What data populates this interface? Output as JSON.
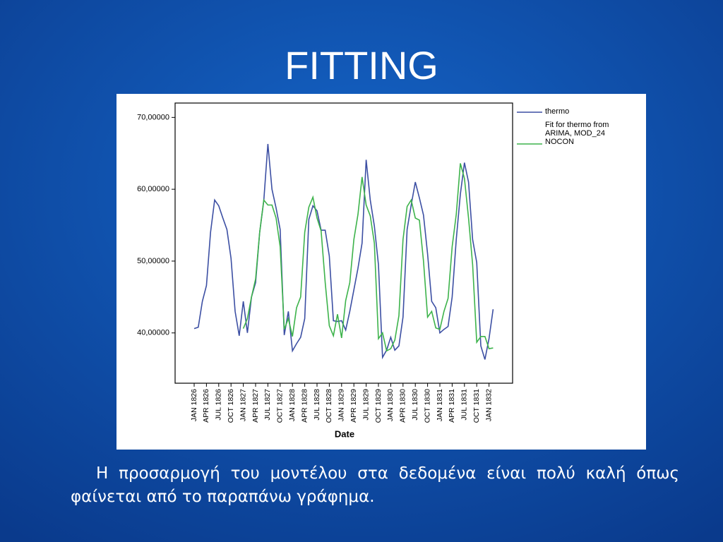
{
  "slide": {
    "title": "FITTING",
    "text": "Η προσαρμογή του μοντέλου στα δεδομένα είναι πολύ καλή όπως φαίνεται από το παραπάνω γράφημα."
  },
  "chart_data": {
    "type": "line",
    "x_label": "Date",
    "categories": [
      "JAN 1826",
      null,
      null,
      "APR 1826",
      null,
      null,
      "JUL 1826",
      null,
      null,
      "OCT 1826",
      null,
      null,
      "JAN 1827",
      null,
      null,
      "APR 1827",
      null,
      null,
      "JUL 1827",
      null,
      null,
      "OCT 1827",
      null,
      null,
      "JAN 1828",
      null,
      null,
      "APR 1828",
      null,
      null,
      "JUL 1828",
      null,
      null,
      "OCT 1828",
      null,
      null,
      "JAN 1829",
      null,
      null,
      "APR 1829",
      null,
      null,
      "JUL 1829",
      null,
      null,
      "OCT 1829",
      null,
      null,
      "JAN 1830",
      null,
      null,
      "APR 1830",
      null,
      null,
      "JUL 1830",
      null,
      null,
      "OCT 1830",
      null,
      null,
      "JAN 1831",
      null,
      null,
      "APR 1831",
      null,
      null,
      "JUL 1831",
      null,
      null,
      "OCT 1831",
      null,
      null,
      "JAN 1832",
      null
    ],
    "series": [
      {
        "name": "thermo",
        "color": "#3c4fa3",
        "values": [
          40.6,
          40.8,
          44.4,
          46.6,
          54,
          58.5,
          57.7,
          56,
          54.4,
          50.4,
          43,
          39.6,
          44.4,
          40,
          45,
          47,
          54,
          58.4,
          66.3,
          60,
          57.4,
          54.4,
          39.7,
          43,
          37.5,
          38.5,
          39.4,
          42,
          55.8,
          57.7,
          57,
          54.3,
          54.3,
          50.7,
          41.7,
          41.6,
          41.7,
          40.4,
          43,
          46,
          49,
          52.5,
          64.1,
          58.5,
          54.9,
          49.5,
          36.6,
          37.6,
          39.4,
          37.6,
          38.2,
          42.2,
          54.4,
          57.8,
          61,
          58.8,
          56.4,
          51,
          44.4,
          43.5,
          40,
          40.5,
          40.9,
          45,
          53,
          59.3,
          63.7,
          61,
          53,
          49.8,
          38.2,
          36.3,
          39.2,
          43.3
        ]
      },
      {
        "name": "Fit for thermo from ARIMA, MOD_24 NOCON",
        "color": "#3db34b",
        "values": [
          null,
          null,
          null,
          null,
          null,
          null,
          null,
          null,
          null,
          null,
          null,
          null,
          40.6,
          42,
          45,
          47.5,
          54,
          58.5,
          57.8,
          57.8,
          56,
          52,
          40.5,
          42,
          39.5,
          43.5,
          45,
          54,
          57.5,
          58.9,
          56,
          54.2,
          47,
          41,
          39.6,
          42.6,
          39.3,
          44.5,
          47,
          53,
          56.5,
          61.7,
          57.8,
          56.3,
          52.5,
          39.2,
          40,
          37.5,
          37.8,
          39,
          42.4,
          53,
          57.6,
          58.5,
          56,
          55.7,
          50,
          42.2,
          43,
          40.7,
          40.5,
          43,
          44.8,
          52,
          56.5,
          63.6,
          61.5,
          56,
          49.5,
          38.7,
          39.5,
          39.5,
          37.8,
          37.9
        ]
      }
    ],
    "ylim": [
      33,
      72
    ],
    "yticks": [
      {
        "value": 40,
        "label": "40,00000"
      },
      {
        "value": 50,
        "label": "50,00000"
      },
      {
        "value": 60,
        "label": "60,00000"
      },
      {
        "value": 70,
        "label": "70,00000"
      }
    ],
    "legend": "upper right"
  }
}
